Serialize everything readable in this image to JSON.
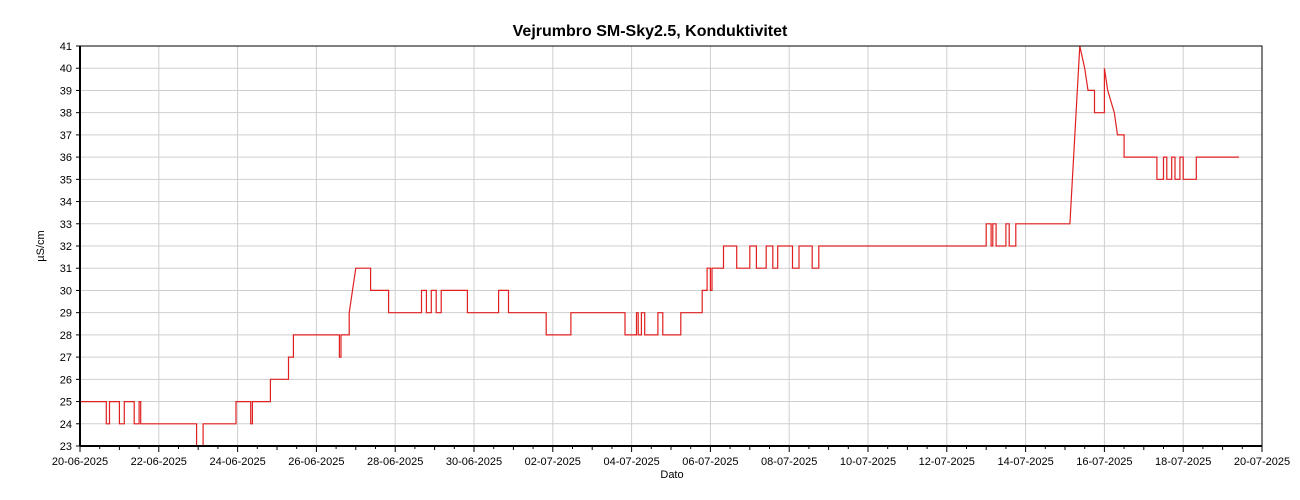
{
  "chart_data": {
    "type": "line",
    "title": "Vejrumbro SM-Sky2.5, Konduktivitet",
    "xlabel": "Dato",
    "ylabel": "µS/cm",
    "xlim": [
      "2025-06-20",
      "2025-07-20"
    ],
    "ylim": [
      23,
      41
    ],
    "x_tick_labels": [
      "20-06-2025",
      "22-06-2025",
      "24-06-2025",
      "26-06-2025",
      "28-06-2025",
      "30-06-2025",
      "02-07-2025",
      "04-07-2025",
      "06-07-2025",
      "08-07-2025",
      "10-07-2025",
      "12-07-2025",
      "14-07-2025",
      "16-07-2025",
      "18-07-2025",
      "20-07-2025"
    ],
    "y_tick_labels": [
      "23",
      "24",
      "25",
      "26",
      "27",
      "28",
      "29",
      "30",
      "31",
      "32",
      "33",
      "34",
      "35",
      "36",
      "37",
      "38",
      "39",
      "40",
      "41"
    ],
    "grid": true,
    "legend": "none",
    "series": [
      {
        "color": "#e02020",
        "points": [
          [
            "2025-06-20 00:00",
            25
          ],
          [
            "2025-06-20 16:00",
            25
          ],
          [
            "2025-06-20 16:00",
            24
          ],
          [
            "2025-06-20 18:00",
            24
          ],
          [
            "2025-06-20 18:00",
            25
          ],
          [
            "2025-06-21 00:00",
            25
          ],
          [
            "2025-06-21 00:00",
            24
          ],
          [
            "2025-06-21 03:00",
            24
          ],
          [
            "2025-06-21 03:00",
            25
          ],
          [
            "2025-06-21 09:00",
            25
          ],
          [
            "2025-06-21 09:00",
            24
          ],
          [
            "2025-06-21 12:00",
            24
          ],
          [
            "2025-06-21 12:00",
            25
          ],
          [
            "2025-06-21 13:00",
            25
          ],
          [
            "2025-06-21 13:00",
            24
          ],
          [
            "2025-06-22 23:00",
            24
          ],
          [
            "2025-06-22 23:00",
            23
          ],
          [
            "2025-06-23 03:00",
            23
          ],
          [
            "2025-06-23 03:00",
            24
          ],
          [
            "2025-06-23 23:00",
            24
          ],
          [
            "2025-06-23 23:00",
            25
          ],
          [
            "2025-06-24 08:00",
            25
          ],
          [
            "2025-06-24 08:00",
            24
          ],
          [
            "2025-06-24 09:00",
            24
          ],
          [
            "2025-06-24 09:00",
            25
          ],
          [
            "2025-06-24 20:00",
            25
          ],
          [
            "2025-06-24 20:00",
            26
          ],
          [
            "2025-06-25 07:00",
            26
          ],
          [
            "2025-06-25 07:00",
            27
          ],
          [
            "2025-06-25 10:00",
            27
          ],
          [
            "2025-06-25 10:00",
            28
          ],
          [
            "2025-06-26 14:00",
            28
          ],
          [
            "2025-06-26 14:00",
            27
          ],
          [
            "2025-06-26 15:00",
            27
          ],
          [
            "2025-06-26 15:00",
            28
          ],
          [
            "2025-06-26 20:00",
            28
          ],
          [
            "2025-06-26 20:00",
            29
          ],
          [
            "2025-06-26 22:00",
            30
          ],
          [
            "2025-06-27 00:00",
            31
          ],
          [
            "2025-06-27 09:00",
            31
          ],
          [
            "2025-06-27 09:00",
            30
          ],
          [
            "2025-06-27 20:00",
            30
          ],
          [
            "2025-06-27 20:00",
            29
          ],
          [
            "2025-06-28 16:00",
            29
          ],
          [
            "2025-06-28 16:00",
            30
          ],
          [
            "2025-06-28 19:00",
            30
          ],
          [
            "2025-06-28 19:00",
            29
          ],
          [
            "2025-06-28 22:00",
            29
          ],
          [
            "2025-06-28 22:00",
            30
          ],
          [
            "2025-06-29 01:00",
            30
          ],
          [
            "2025-06-29 01:00",
            29
          ],
          [
            "2025-06-29 04:00",
            29
          ],
          [
            "2025-06-29 04:00",
            30
          ],
          [
            "2025-06-29 20:00",
            30
          ],
          [
            "2025-06-29 20:00",
            29
          ],
          [
            "2025-06-30 15:00",
            29
          ],
          [
            "2025-06-30 15:00",
            30
          ],
          [
            "2025-06-30 21:00",
            30
          ],
          [
            "2025-06-30 21:00",
            29
          ],
          [
            "2025-07-01 20:00",
            29
          ],
          [
            "2025-07-01 20:00",
            28
          ],
          [
            "2025-07-02 11:00",
            28
          ],
          [
            "2025-07-02 11:00",
            29
          ],
          [
            "2025-07-03 20:00",
            29
          ],
          [
            "2025-07-03 20:00",
            28
          ],
          [
            "2025-07-04 03:00",
            28
          ],
          [
            "2025-07-04 03:00",
            29
          ],
          [
            "2025-07-04 04:00",
            29
          ],
          [
            "2025-07-04 04:00",
            28
          ],
          [
            "2025-07-04 06:00",
            28
          ],
          [
            "2025-07-04 06:00",
            29
          ],
          [
            "2025-07-04 08:00",
            29
          ],
          [
            "2025-07-04 08:00",
            28
          ],
          [
            "2025-07-04 16:00",
            28
          ],
          [
            "2025-07-04 16:00",
            29
          ],
          [
            "2025-07-04 19:00",
            29
          ],
          [
            "2025-07-04 19:00",
            28
          ],
          [
            "2025-07-05 06:00",
            28
          ],
          [
            "2025-07-05 06:00",
            29
          ],
          [
            "2025-07-05 19:00",
            29
          ],
          [
            "2025-07-05 19:00",
            30
          ],
          [
            "2025-07-05 22:00",
            30
          ],
          [
            "2025-07-05 22:00",
            31
          ],
          [
            "2025-07-06 00:00",
            31
          ],
          [
            "2025-07-06 00:00",
            30
          ],
          [
            "2025-07-06 01:00",
            30
          ],
          [
            "2025-07-06 01:00",
            31
          ],
          [
            "2025-07-06 08:00",
            31
          ],
          [
            "2025-07-06 08:00",
            32
          ],
          [
            "2025-07-06 16:00",
            32
          ],
          [
            "2025-07-06 16:00",
            31
          ],
          [
            "2025-07-07 00:00",
            31
          ],
          [
            "2025-07-07 00:00",
            32
          ],
          [
            "2025-07-07 04:00",
            32
          ],
          [
            "2025-07-07 04:00",
            31
          ],
          [
            "2025-07-07 10:00",
            31
          ],
          [
            "2025-07-07 10:00",
            32
          ],
          [
            "2025-07-07 14:00",
            32
          ],
          [
            "2025-07-07 14:00",
            31
          ],
          [
            "2025-07-07 17:00",
            31
          ],
          [
            "2025-07-07 17:00",
            32
          ],
          [
            "2025-07-08 02:00",
            32
          ],
          [
            "2025-07-08 02:00",
            31
          ],
          [
            "2025-07-08 06:00",
            31
          ],
          [
            "2025-07-08 06:00",
            32
          ],
          [
            "2025-07-08 14:00",
            32
          ],
          [
            "2025-07-08 14:00",
            31
          ],
          [
            "2025-07-08 18:00",
            31
          ],
          [
            "2025-07-08 18:00",
            32
          ],
          [
            "2025-07-13 00:00",
            32
          ],
          [
            "2025-07-13 00:00",
            33
          ],
          [
            "2025-07-13 03:00",
            33
          ],
          [
            "2025-07-13 03:00",
            32
          ],
          [
            "2025-07-13 04:00",
            32
          ],
          [
            "2025-07-13 04:00",
            33
          ],
          [
            "2025-07-13 06:00",
            33
          ],
          [
            "2025-07-13 06:00",
            32
          ],
          [
            "2025-07-13 12:00",
            32
          ],
          [
            "2025-07-13 12:00",
            33
          ],
          [
            "2025-07-13 14:00",
            33
          ],
          [
            "2025-07-13 14:00",
            32
          ],
          [
            "2025-07-13 18:00",
            32
          ],
          [
            "2025-07-13 18:00",
            33
          ],
          [
            "2025-07-15 03:00",
            33
          ],
          [
            "2025-07-15 09:00",
            41
          ],
          [
            "2025-07-15 12:00",
            40
          ],
          [
            "2025-07-15 14:00",
            39
          ],
          [
            "2025-07-15 18:00",
            39
          ],
          [
            "2025-07-15 18:00",
            38
          ],
          [
            "2025-07-16 00:00",
            38
          ],
          [
            "2025-07-16 00:00",
            40
          ],
          [
            "2025-07-16 02:00",
            39
          ],
          [
            "2025-07-16 04:00",
            38.5
          ],
          [
            "2025-07-16 06:00",
            38
          ],
          [
            "2025-07-16 08:00",
            37
          ],
          [
            "2025-07-16 12:00",
            37
          ],
          [
            "2025-07-16 12:00",
            36
          ],
          [
            "2025-07-17 08:00",
            36
          ],
          [
            "2025-07-17 08:00",
            35
          ],
          [
            "2025-07-17 12:00",
            35
          ],
          [
            "2025-07-17 12:00",
            36
          ],
          [
            "2025-07-17 14:00",
            36
          ],
          [
            "2025-07-17 14:00",
            35
          ],
          [
            "2025-07-17 17:00",
            35
          ],
          [
            "2025-07-17 17:00",
            36
          ],
          [
            "2025-07-17 19:00",
            36
          ],
          [
            "2025-07-17 19:00",
            35
          ],
          [
            "2025-07-17 22:00",
            35
          ],
          [
            "2025-07-17 22:00",
            36
          ],
          [
            "2025-07-18 00:00",
            36
          ],
          [
            "2025-07-18 00:00",
            35
          ],
          [
            "2025-07-18 08:00",
            35
          ],
          [
            "2025-07-18 08:00",
            36
          ],
          [
            "2025-07-19 10:00",
            36
          ]
        ]
      }
    ]
  }
}
